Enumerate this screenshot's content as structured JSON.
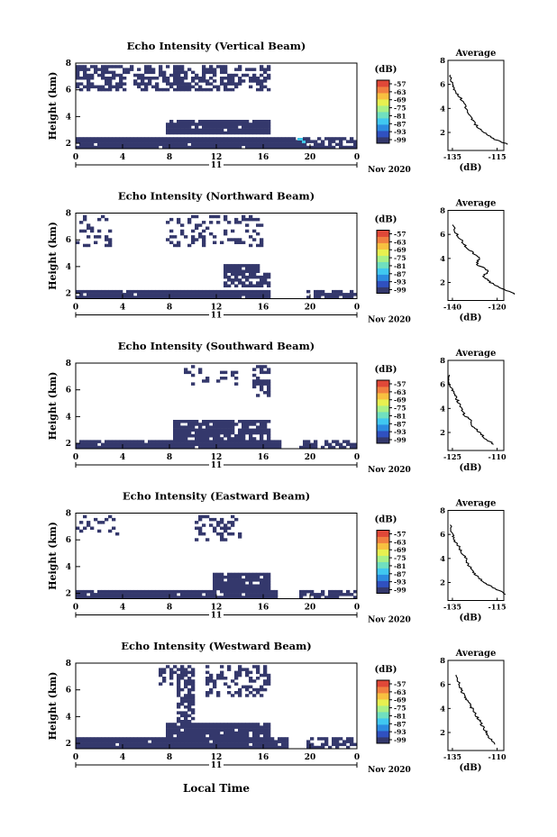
{
  "figure": {
    "xlabel": "Local Time",
    "date_label": "Nov 2020",
    "day_label": "11",
    "unit_label": "(dB)",
    "avg_title": "Average",
    "avg_xlabel": "(dB)",
    "ylabel": "Height (km)"
  },
  "colors": {
    "echo": "#34386c",
    "spots": "#41c8e8",
    "colorbar": [
      "#34386c",
      "#3050c0",
      "#2c8ce0",
      "#40c8f0",
      "#70e0c0",
      "#a8f088",
      "#e8f050",
      "#f8c040",
      "#f08040",
      "#e04838"
    ]
  },
  "chart_data": [
    {
      "type": "heatmap",
      "title": "Echo Intensity (Vertical Beam)",
      "xticks": [
        "0",
        "4",
        "8",
        "12",
        "16",
        "20",
        "0"
      ],
      "yticks": [
        "2",
        "4",
        "6",
        "8"
      ],
      "colorbar_ticks": [
        "-57",
        "-63",
        "-69",
        "-75",
        "-81",
        "-87",
        "-93",
        "-99"
      ],
      "xlim": [
        0,
        24
      ],
      "ylim": [
        1.6,
        8
      ],
      "avg_xticks": [
        "-135",
        "-115"
      ],
      "avg_profile": {
        "x": [
          -110,
          -117,
          -121,
          -124,
          -126,
          -128,
          -129,
          -130,
          -132,
          -134,
          -135,
          -136
        ],
        "y": [
          1.0,
          1.5,
          2.0,
          2.5,
          3.0,
          3.5,
          4.0,
          4.5,
          5.0,
          5.5,
          6.0,
          6.8
        ]
      }
    },
    {
      "type": "heatmap",
      "title": "Echo Intensity (Northward Beam)",
      "xticks": [
        "0",
        "4",
        "8",
        "12",
        "16",
        "20",
        "0"
      ],
      "yticks": [
        "2",
        "4",
        "6",
        "8"
      ],
      "colorbar_ticks": [
        "-57",
        "-63",
        "-69",
        "-75",
        "-81",
        "-87",
        "-93",
        "-99"
      ],
      "xlim": [
        0,
        24
      ],
      "ylim": [
        1.6,
        8
      ],
      "avg_xticks": [
        "-140",
        "-120"
      ],
      "avg_profile": {
        "x": [
          -112,
          -118,
          -123,
          -126,
          -124,
          -129,
          -128,
          -131,
          -134,
          -136,
          -138,
          -140
        ],
        "y": [
          1.0,
          1.5,
          2.0,
          2.5,
          3.0,
          3.5,
          4.0,
          4.5,
          5.0,
          5.5,
          6.0,
          6.8
        ]
      }
    },
    {
      "type": "heatmap",
      "title": "Echo Intensity (Southward Beam)",
      "xticks": [
        "0",
        "4",
        "8",
        "12",
        "16",
        "20",
        "0"
      ],
      "yticks": [
        "2",
        "4",
        "6",
        "8"
      ],
      "colorbar_ticks": [
        "-57",
        "-63",
        "-69",
        "-75",
        "-81",
        "-87",
        "-93",
        "-99"
      ],
      "xlim": [
        0,
        24
      ],
      "ylim": [
        1.6,
        8
      ],
      "avg_xticks": [
        "-125",
        "-110"
      ],
      "avg_profile": {
        "x": [
          -111,
          -114,
          -116,
          -118,
          -119,
          -121,
          -122,
          -123,
          -124,
          -125,
          -126,
          -126
        ],
        "y": [
          1.0,
          1.5,
          2.0,
          2.5,
          3.0,
          3.5,
          4.0,
          4.5,
          5.0,
          5.5,
          6.0,
          6.8
        ]
      }
    },
    {
      "type": "heatmap",
      "title": "Echo Intensity (Eastward Beam)",
      "xticks": [
        "0",
        "4",
        "8",
        "12",
        "16",
        "20",
        "0"
      ],
      "yticks": [
        "2",
        "4",
        "6",
        "8"
      ],
      "colorbar_ticks": [
        "-57",
        "-63",
        "-69",
        "-75",
        "-81",
        "-87",
        "-93",
        "-99"
      ],
      "xlim": [
        0,
        24
      ],
      "ylim": [
        1.6,
        8
      ],
      "avg_xticks": [
        "-135",
        "-115"
      ],
      "avg_profile": {
        "x": [
          -111,
          -116,
          -121,
          -124,
          -126,
          -128,
          -129,
          -131,
          -132,
          -134,
          -135,
          -136
        ],
        "y": [
          1.0,
          1.5,
          2.0,
          2.5,
          3.0,
          3.5,
          4.0,
          4.5,
          5.0,
          5.5,
          6.0,
          6.8
        ]
      }
    },
    {
      "type": "heatmap",
      "title": "Echo Intensity (Westward Beam)",
      "xticks": [
        "0",
        "4",
        "8",
        "12",
        "16",
        "20",
        "0"
      ],
      "yticks": [
        "2",
        "4",
        "6",
        "8"
      ],
      "colorbar_ticks": [
        "-57",
        "-63",
        "-69",
        "-75",
        "-81",
        "-87",
        "-93",
        "-99"
      ],
      "xlim": [
        0,
        24
      ],
      "ylim": [
        1.6,
        8
      ],
      "avg_xticks": [
        "-135",
        "-110"
      ],
      "avg_profile": {
        "x": [
          -111,
          -114,
          -116,
          -118,
          -120,
          -122,
          -124,
          -126,
          -128,
          -130,
          -131,
          -133
        ],
        "y": [
          1.0,
          1.5,
          2.0,
          2.5,
          3.0,
          3.5,
          4.0,
          4.5,
          5.0,
          5.5,
          6.0,
          6.8
        ]
      }
    }
  ]
}
